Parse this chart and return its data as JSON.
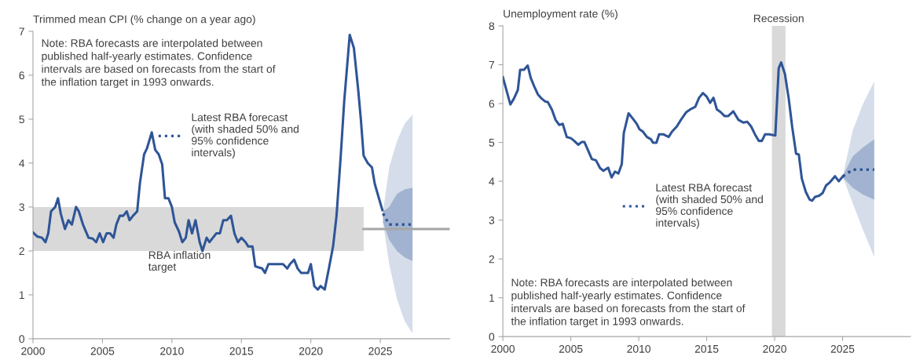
{
  "chart_data": [
    {
      "type": "line",
      "ylabel": "Trimmed mean CPI (% change on a year ago)",
      "xlim": [
        2000,
        2030
      ],
      "xticks": [
        2000,
        2005,
        2010,
        2015,
        2020,
        2025
      ],
      "ylim": [
        0,
        7
      ],
      "yticks": [
        0,
        1,
        2,
        3,
        4,
        5,
        6,
        7
      ],
      "grid": false,
      "legend": "center",
      "annotations": [
        "Note: RBA forecasts are interpolated between\npublished half-yearly estimates. Confidence\nintervals are based on forecasts from the start of\nthe inflation target in 1993 onwards.",
        {
          "text": "RBA inflation\ntarget",
          "x": 2008.3,
          "y": 2.0
        }
      ],
      "bands": [
        {
          "axis": "y",
          "from": 2,
          "to": 3,
          "color": "#d9d9d9"
        }
      ],
      "series": [
        {
          "type": "line",
          "color": "#a6a6a6",
          "x": [
            2023.8,
            2030
          ],
          "values": [
            2.5,
            2.5
          ]
        },
        {
          "type": "line",
          "color": "#2f5597",
          "x": [
            2000.0,
            2000.3,
            2000.65,
            2000.9,
            2001.1,
            2001.3,
            2001.6,
            2001.8,
            2002.0,
            2002.3,
            2002.55,
            2002.8,
            2003.1,
            2003.3,
            2003.6,
            2004.0,
            2004.3,
            2004.55,
            2004.8,
            2005.05,
            2005.3,
            2005.55,
            2005.8,
            2006.0,
            2006.25,
            2006.5,
            2006.75,
            2006.95,
            2007.2,
            2007.5,
            2007.7,
            2008.0,
            2008.2,
            2008.55,
            2008.8,
            2009.05,
            2009.3,
            2009.5,
            2009.75,
            2010.0,
            2010.2,
            2010.5,
            2010.75,
            2011.0,
            2011.2,
            2011.45,
            2011.7,
            2012.0,
            2012.2,
            2012.5,
            2012.7,
            2012.95,
            2013.2,
            2013.45,
            2013.7,
            2013.95,
            2014.25,
            2014.5,
            2014.75,
            2015.0,
            2015.3,
            2015.5,
            2015.8,
            2016.0,
            2016.3,
            2016.5,
            2016.7,
            2016.95,
            2017.4,
            2018.0,
            2018.3,
            2018.5,
            2018.8,
            2019.05,
            2019.3,
            2019.8,
            2020.0,
            2020.25,
            2020.5,
            2020.7,
            2021.0,
            2021.3,
            2021.6,
            2021.85,
            2022.15,
            2022.4,
            2022.8,
            2023.1,
            2023.4,
            2023.6,
            2023.8,
            2024.1,
            2024.4,
            2024.6,
            2024.9,
            2025.15
          ],
          "values": [
            2.42,
            2.33,
            2.3,
            2.2,
            2.4,
            2.9,
            3.0,
            3.2,
            2.85,
            2.5,
            2.7,
            2.6,
            3.0,
            2.9,
            2.6,
            2.3,
            2.28,
            2.2,
            2.4,
            2.2,
            2.4,
            2.4,
            2.3,
            2.6,
            2.8,
            2.8,
            2.9,
            2.7,
            2.8,
            2.9,
            3.55,
            4.2,
            4.33,
            4.7,
            4.3,
            4.2,
            3.97,
            3.2,
            3.2,
            3.0,
            2.65,
            2.45,
            2.2,
            2.3,
            2.7,
            2.4,
            2.7,
            2.2,
            2.0,
            2.3,
            2.2,
            2.3,
            2.4,
            2.4,
            2.7,
            2.7,
            2.8,
            2.4,
            2.2,
            2.3,
            2.2,
            2.1,
            2.1,
            1.65,
            1.62,
            1.6,
            1.5,
            1.7,
            1.7,
            1.7,
            1.6,
            1.7,
            1.8,
            1.6,
            1.5,
            1.5,
            1.7,
            1.2,
            1.12,
            1.2,
            1.12,
            1.6,
            2.1,
            2.8,
            4.15,
            5.4,
            6.92,
            6.62,
            5.7,
            5.0,
            4.17,
            4.0,
            3.9,
            3.53,
            3.2,
            2.93
          ]
        },
        {
          "type": "line",
          "name": "Latest RBA forecast\n(with shaded 50% and\n95% confidence\nintervals)",
          "color": "#2f5597",
          "line_style": "dotted",
          "x": [
            2025.2,
            2025.64,
            2026.2,
            2026.76,
            2027.32
          ],
          "values": [
            2.85,
            2.6,
            2.6,
            2.6,
            2.6
          ],
          "lower": [
            2.64,
            1.7,
            0.9,
            0.4,
            0.12
          ],
          "upper": [
            2.9,
            3.9,
            4.5,
            4.9,
            5.1
          ]
        },
        {
          "type": "line",
          "color": "#2f5597",
          "line_style": "dotted",
          "x": [
            2025.2,
            2025.64,
            2026.2,
            2026.76,
            2027.32
          ],
          "values": [
            2.85,
            2.6,
            2.6,
            2.6,
            2.6
          ],
          "lower": [
            2.64,
            2.25,
            2.0,
            1.85,
            1.77
          ],
          "upper": [
            2.9,
            3.0,
            3.3,
            3.4,
            3.44
          ]
        }
      ]
    },
    {
      "type": "line",
      "ylabel": "Unemployment rate (%)",
      "xlim": [
        2000,
        2030
      ],
      "xticks": [
        2000,
        2005,
        2010,
        2015,
        2020,
        2025
      ],
      "ylim": [
        0,
        8
      ],
      "yticks": [
        0,
        1,
        2,
        3,
        4,
        5,
        6,
        7,
        8
      ],
      "grid": false,
      "legend": "center left",
      "annotations": [
        "Note: RBA forecasts are interpolated between\npublished half-yearly estimates. Confidence\nintervals are based on forecasts from the start of\nthe inflation target in 1993 onwards."
      ],
      "bands": [
        {
          "axis": "x",
          "from": 2019.8,
          "to": 2020.8,
          "label": "Recession",
          "color": "#d9d9d9"
        }
      ],
      "series": [
        {
          "type": "line",
          "color": "#2f5597",
          "x": [
            2000.0,
            2000.55,
            2000.8,
            2001.1,
            2001.27,
            2001.55,
            2001.83,
            2002.05,
            2002.3,
            2002.57,
            2002.85,
            2003.13,
            2003.3,
            2003.6,
            2003.88,
            2004.15,
            2004.4,
            2004.7,
            2005.0,
            2005.25,
            2005.55,
            2005.8,
            2006.0,
            2006.3,
            2006.55,
            2006.85,
            2007.15,
            2007.4,
            2007.75,
            2008.0,
            2008.25,
            2008.5,
            2008.75,
            2008.9,
            2009.25,
            2009.57,
            2009.85,
            2010.05,
            2010.3,
            2010.6,
            2010.9,
            2011.05,
            2011.3,
            2011.5,
            2011.8,
            2012.2,
            2012.45,
            2012.8,
            2013.1,
            2013.5,
            2013.79,
            2014.16,
            2014.44,
            2014.72,
            2015.0,
            2015.25,
            2015.5,
            2015.75,
            2016.03,
            2016.31,
            2016.59,
            2016.96,
            2017.34,
            2017.71,
            2017.99,
            2018.27,
            2018.55,
            2018.83,
            2019.06,
            2019.3,
            2019.58,
            2020.05,
            2020.3,
            2020.48,
            2020.76,
            2021.04,
            2021.3,
            2021.58,
            2021.78,
            2022.0,
            2022.29,
            2022.57,
            2022.76,
            2022.98,
            2023.28,
            2023.54,
            2023.78,
            2024.06,
            2024.44,
            2024.72,
            2025.03
          ],
          "values": [
            6.68,
            5.98,
            6.12,
            6.35,
            6.87,
            6.87,
            6.98,
            6.66,
            6.45,
            6.24,
            6.13,
            6.05,
            6.04,
            5.85,
            5.58,
            5.45,
            5.48,
            5.14,
            5.11,
            5.04,
            4.94,
            5.01,
            5.01,
            4.77,
            4.57,
            4.54,
            4.34,
            4.27,
            4.35,
            4.1,
            4.25,
            4.2,
            4.44,
            5.24,
            5.75,
            5.61,
            5.48,
            5.34,
            5.28,
            5.14,
            5.08,
            4.99,
            4.99,
            5.21,
            5.21,
            5.14,
            5.28,
            5.41,
            5.58,
            5.78,
            5.85,
            5.92,
            6.15,
            6.27,
            6.18,
            6.02,
            6.15,
            5.85,
            5.78,
            5.68,
            5.68,
            5.8,
            5.58,
            5.51,
            5.53,
            5.41,
            5.21,
            5.04,
            5.04,
            5.21,
            5.21,
            5.18,
            6.91,
            7.06,
            6.76,
            6.12,
            5.38,
            4.71,
            4.69,
            4.07,
            3.73,
            3.53,
            3.5,
            3.6,
            3.63,
            3.7,
            3.89,
            3.97,
            4.13,
            4.0,
            4.13
          ]
        },
        {
          "type": "line",
          "name": "Latest RBA forecast\n(with shaded 50% and\n95% confidence\nintervals)",
          "color": "#2f5597",
          "line_style": "dotted",
          "x": [
            2025.03,
            2025.75,
            2026.49,
            2027.33
          ],
          "values": [
            4.13,
            4.3,
            4.3,
            4.3
          ],
          "lower": [
            4.1,
            3.43,
            2.76,
            2.05
          ],
          "upper": [
            4.15,
            5.31,
            5.98,
            6.57
          ]
        },
        {
          "type": "line",
          "color": "#2f5597",
          "line_style": "dotted",
          "x": [
            2025.03,
            2025.75,
            2026.49,
            2027.33
          ],
          "values": [
            4.13,
            4.3,
            4.3,
            4.3
          ],
          "lower": [
            4.1,
            3.83,
            3.66,
            3.53
          ],
          "upper": [
            4.15,
            4.64,
            4.87,
            5.08
          ]
        }
      ]
    }
  ]
}
